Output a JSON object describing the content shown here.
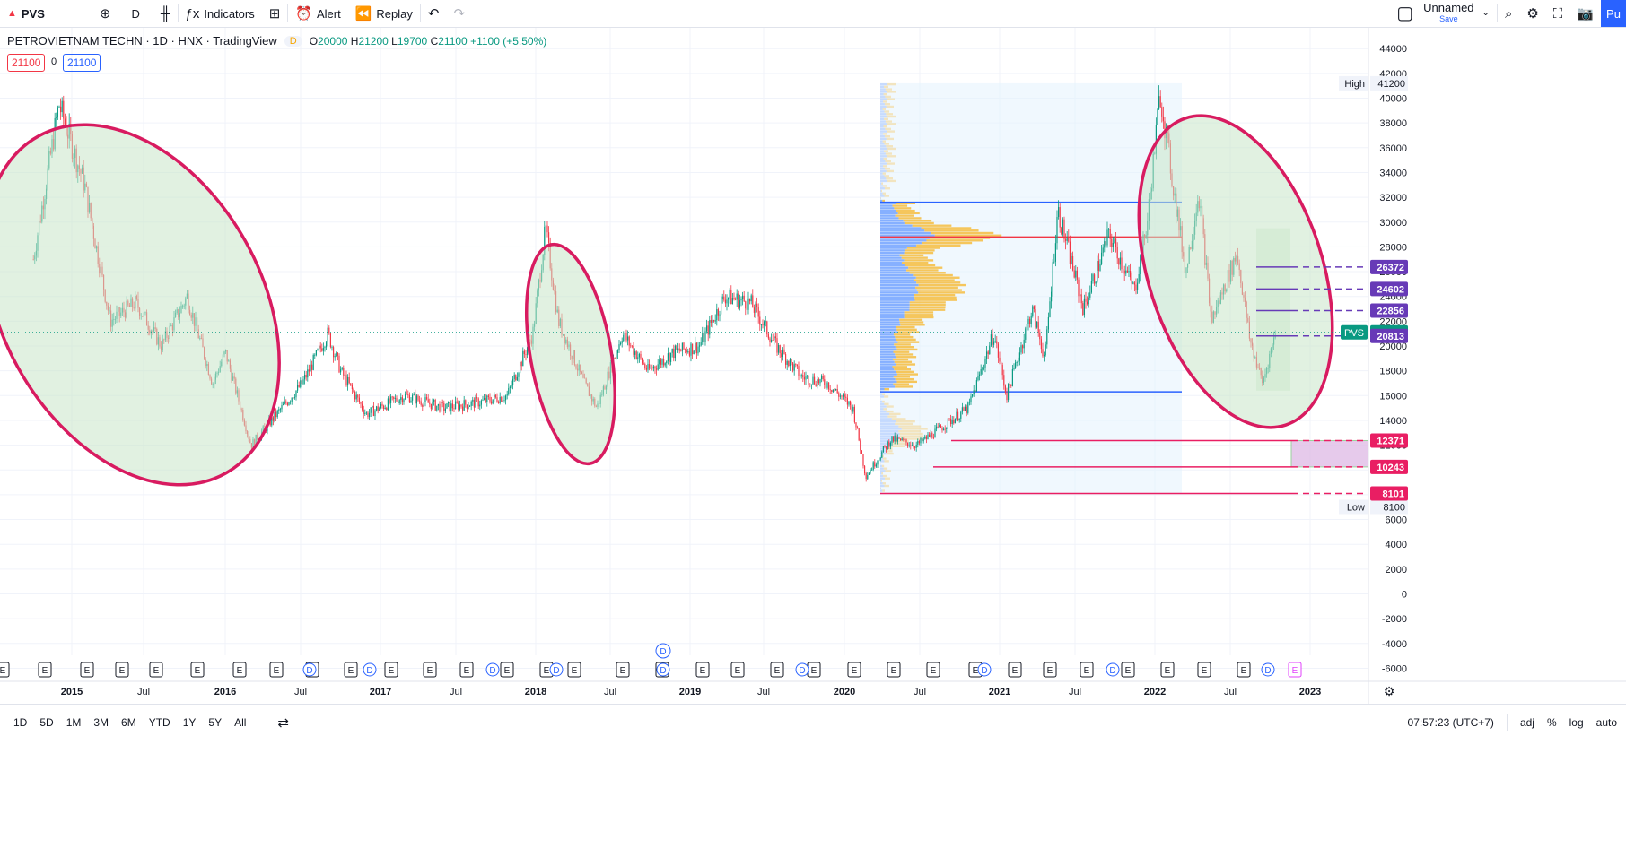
{
  "toolbar": {
    "symbol": "PVS",
    "interval": "D",
    "indicators_label": "Indicators",
    "alert_label": "Alert",
    "replay_label": "Replay",
    "layout_name": "Unnamed",
    "layout_save": "Save",
    "publish_label": "Pu"
  },
  "legend": {
    "title": "PETROVIETNAM TECHN · 1D · HNX · TradingView",
    "badge": "D",
    "open_k": "O",
    "open_v": "20000",
    "high_k": "H",
    "high_v": "21200",
    "low_k": "L",
    "low_v": "19700",
    "close_k": "C",
    "close_v": "21100",
    "change": "+1100 (+5.50%)",
    "sell_price": "21100",
    "spread": "0",
    "buy_price": "21100"
  },
  "axis": {
    "price_ticks": [
      "44000",
      "42000",
      "40000",
      "38000",
      "36000",
      "34000",
      "32000",
      "30000",
      "28000",
      "26000",
      "24000",
      "22000",
      "20000",
      "18000",
      "16000",
      "14000",
      "12000",
      "10000",
      "8000",
      "6000",
      "4000",
      "2000",
      "0",
      "-2000",
      "-4000",
      "-6000"
    ],
    "time_labels": [
      {
        "t": "2015",
        "x": 80,
        "bold": true
      },
      {
        "t": "Jul",
        "x": 160,
        "bold": false
      },
      {
        "t": "2016",
        "x": 251,
        "bold": true
      },
      {
        "t": "Jul",
        "x": 335,
        "bold": false
      },
      {
        "t": "2017",
        "x": 424,
        "bold": true
      },
      {
        "t": "Jul",
        "x": 508,
        "bold": false
      },
      {
        "t": "2018",
        "x": 597,
        "bold": true
      },
      {
        "t": "Jul",
        "x": 680,
        "bold": false
      },
      {
        "t": "2019",
        "x": 769,
        "bold": true
      },
      {
        "t": "Jul",
        "x": 851,
        "bold": false
      },
      {
        "t": "2020",
        "x": 941,
        "bold": true
      },
      {
        "t": "Jul",
        "x": 1025,
        "bold": false
      },
      {
        "t": "2021",
        "x": 1114,
        "bold": true
      },
      {
        "t": "Jul",
        "x": 1198,
        "bold": false
      },
      {
        "t": "2022",
        "x": 1287,
        "bold": true
      },
      {
        "t": "Jul",
        "x": 1371,
        "bold": false
      },
      {
        "t": "2023",
        "x": 1460,
        "bold": true
      }
    ],
    "high_label": "High",
    "high_value": "41200",
    "low_label": "Low",
    "low_value": "8100"
  },
  "levels": [
    {
      "value": "26372",
      "color": "#673ab7",
      "price": 26372
    },
    {
      "value": "24602",
      "color": "#673ab7",
      "price": 24602
    },
    {
      "value": "22856",
      "color": "#673ab7",
      "price": 22856
    },
    {
      "value": "21100",
      "color": "#089981",
      "price": 21100,
      "tag": "PVS"
    },
    {
      "value": "20813",
      "color": "#673ab7",
      "price": 20813
    },
    {
      "value": "12371",
      "color": "#e91e63",
      "price": 12371
    },
    {
      "value": "10243",
      "color": "#e91e63",
      "price": 10243
    },
    {
      "value": "8101",
      "color": "#e91e63",
      "price": 8101
    }
  ],
  "colors": {
    "up": "#089981",
    "down": "#f23645",
    "ellipse": "#d81b60",
    "ellipse_fill": "#c8e6c9",
    "vp_up": "#7aa7ff",
    "vp_down": "#f5c04a",
    "poc": "#f23645",
    "va": "#2962ff",
    "accent": "#2962ff"
  },
  "events": [
    "E",
    "D"
  ],
  "bottom": {
    "ranges": [
      "1D",
      "5D",
      "1M",
      "3M",
      "6M",
      "YTD",
      "1Y",
      "5Y",
      "All"
    ],
    "time": "07:57:23 (UTC+7)",
    "adj": "adj",
    "pct": "%",
    "log": "log",
    "auto": "auto"
  },
  "chart_data": {
    "type": "candlestick",
    "series_name": "PVS",
    "ylim": [
      -6000,
      44000
    ],
    "anchors": [
      {
        "d": "2014-10",
        "p": 27000
      },
      {
        "d": "2014-12",
        "p": 39500
      },
      {
        "d": "2015-02",
        "p": 33000
      },
      {
        "d": "2015-04",
        "p": 22000
      },
      {
        "d": "2015-06",
        "p": 23500
      },
      {
        "d": "2015-08",
        "p": 20000
      },
      {
        "d": "2015-10",
        "p": 24000
      },
      {
        "d": "2015-12",
        "p": 17000
      },
      {
        "d": "2016-01",
        "p": 19500
      },
      {
        "d": "2016-03",
        "p": 12000
      },
      {
        "d": "2016-05",
        "p": 14500
      },
      {
        "d": "2016-07",
        "p": 17000
      },
      {
        "d": "2016-09",
        "p": 21000
      },
      {
        "d": "2016-10",
        "p": 18000
      },
      {
        "d": "2016-12",
        "p": 14500
      },
      {
        "d": "2017-03",
        "p": 16000
      },
      {
        "d": "2017-06",
        "p": 15000
      },
      {
        "d": "2017-09",
        "p": 15500
      },
      {
        "d": "2017-11",
        "p": 16000
      },
      {
        "d": "2018-01",
        "p": 21000
      },
      {
        "d": "2018-02",
        "p": 29500
      },
      {
        "d": "2018-03",
        "p": 22000
      },
      {
        "d": "2018-05",
        "p": 17000
      },
      {
        "d": "2018-06",
        "p": 15000
      },
      {
        "d": "2018-08",
        "p": 21000
      },
      {
        "d": "2018-10",
        "p": 18000
      },
      {
        "d": "2018-12",
        "p": 19500
      },
      {
        "d": "2019-02",
        "p": 20000
      },
      {
        "d": "2019-04",
        "p": 24000
      },
      {
        "d": "2019-06",
        "p": 23500
      },
      {
        "d": "2019-08",
        "p": 20000
      },
      {
        "d": "2019-10",
        "p": 17500
      },
      {
        "d": "2019-12",
        "p": 17000
      },
      {
        "d": "2020-02",
        "p": 15000
      },
      {
        "d": "2020-03",
        "p": 9500
      },
      {
        "d": "2020-05",
        "p": 12500
      },
      {
        "d": "2020-07",
        "p": 12000
      },
      {
        "d": "2020-09",
        "p": 13500
      },
      {
        "d": "2020-11",
        "p": 15000
      },
      {
        "d": "2021-01",
        "p": 21000
      },
      {
        "d": "2021-02",
        "p": 16000
      },
      {
        "d": "2021-04",
        "p": 23000
      },
      {
        "d": "2021-05",
        "p": 19000
      },
      {
        "d": "2021-06",
        "p": 31000
      },
      {
        "d": "2021-08",
        "p": 23000
      },
      {
        "d": "2021-10",
        "p": 29000
      },
      {
        "d": "2021-12",
        "p": 24500
      },
      {
        "d": "2022-01",
        "p": 30000
      },
      {
        "d": "2022-02",
        "p": 40500
      },
      {
        "d": "2022-03",
        "p": 33000
      },
      {
        "d": "2022-04",
        "p": 26000
      },
      {
        "d": "2022-05",
        "p": 32500
      },
      {
        "d": "2022-06",
        "p": 22000
      },
      {
        "d": "2022-08",
        "p": 27500
      },
      {
        "d": "2022-09",
        "p": 20500
      },
      {
        "d": "2022-10",
        "p": 17000
      },
      {
        "d": "2022-11",
        "p": 21100
      }
    ]
  }
}
